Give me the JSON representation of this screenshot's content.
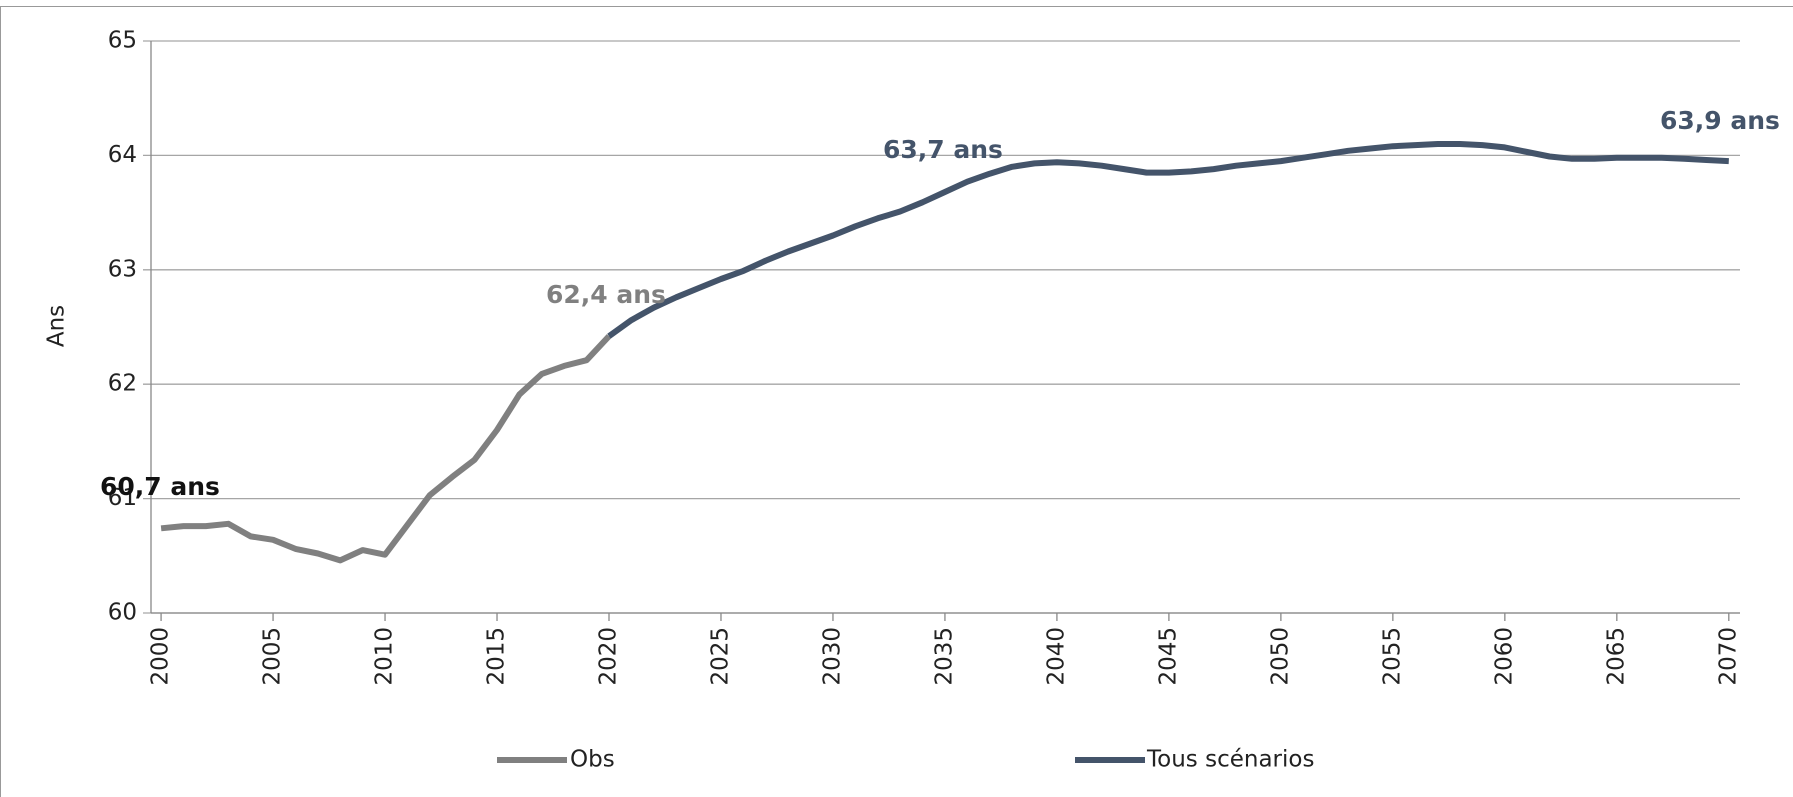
{
  "chart_data": {
    "type": "line",
    "y_label": "Ans",
    "x": [
      2000,
      2001,
      2002,
      2003,
      2004,
      2005,
      2006,
      2007,
      2008,
      2009,
      2010,
      2011,
      2012,
      2013,
      2014,
      2015,
      2016,
      2017,
      2018,
      2019,
      2020,
      2021,
      2022,
      2023,
      2024,
      2025,
      2026,
      2027,
      2028,
      2029,
      2030,
      2031,
      2032,
      2033,
      2034,
      2035,
      2036,
      2037,
      2038,
      2039,
      2040,
      2041,
      2042,
      2043,
      2044,
      2045,
      2046,
      2047,
      2048,
      2049,
      2050,
      2051,
      2052,
      2053,
      2054,
      2055,
      2056,
      2057,
      2058,
      2059,
      2060,
      2061,
      2062,
      2063,
      2064,
      2065,
      2066,
      2067,
      2068,
      2069,
      2070
    ],
    "series": [
      {
        "name": "Obs",
        "color": "#808080",
        "values": [
          60.74,
          60.76,
          60.76,
          60.78,
          60.67,
          60.64,
          60.56,
          60.52,
          60.46,
          60.55,
          60.51,
          60.77,
          61.03,
          61.19,
          61.34,
          61.6,
          61.91,
          62.09,
          62.16,
          62.21,
          62.42,
          null,
          null,
          null,
          null,
          null,
          null,
          null,
          null,
          null,
          null,
          null,
          null,
          null,
          null,
          null,
          null,
          null,
          null,
          null,
          null,
          null,
          null,
          null,
          null,
          null,
          null,
          null,
          null,
          null,
          null,
          null,
          null,
          null,
          null,
          null,
          null,
          null,
          null,
          null,
          null,
          null,
          null,
          null,
          null,
          null,
          null,
          null,
          null,
          null,
          null
        ]
      },
      {
        "name": "Tous scénarios",
        "color": "#44546a",
        "values": [
          null,
          null,
          null,
          null,
          null,
          null,
          null,
          null,
          null,
          null,
          null,
          null,
          null,
          null,
          null,
          null,
          null,
          null,
          null,
          null,
          62.42,
          62.56,
          62.67,
          62.76,
          62.84,
          62.92,
          62.99,
          63.08,
          63.16,
          63.23,
          63.3,
          63.38,
          63.45,
          63.51,
          63.59,
          63.68,
          63.77,
          63.84,
          63.9,
          63.93,
          63.94,
          63.93,
          63.91,
          63.88,
          63.85,
          63.85,
          63.86,
          63.88,
          63.91,
          63.93,
          63.95,
          63.98,
          64.01,
          64.04,
          64.06,
          64.08,
          64.09,
          64.1,
          64.1,
          64.09,
          64.07,
          64.03,
          63.99,
          63.97,
          63.97,
          63.98,
          63.98,
          63.98,
          63.97,
          63.96,
          63.95
        ]
      }
    ],
    "annotations": [
      "60,7 ans",
      "62,4 ans",
      "63,7 ans",
      "63,9 ans"
    ],
    "xlim": [
      1999.55,
      2070.5
    ],
    "xticks": [
      2000,
      2005,
      2010,
      2015,
      2020,
      2025,
      2030,
      2035,
      2040,
      2045,
      2050,
      2055,
      2060,
      2065,
      2070
    ],
    "ylim": [
      60,
      65
    ],
    "yticks": [
      60,
      61,
      62,
      63,
      64,
      65
    ],
    "grid": true,
    "legend": "bottom"
  }
}
